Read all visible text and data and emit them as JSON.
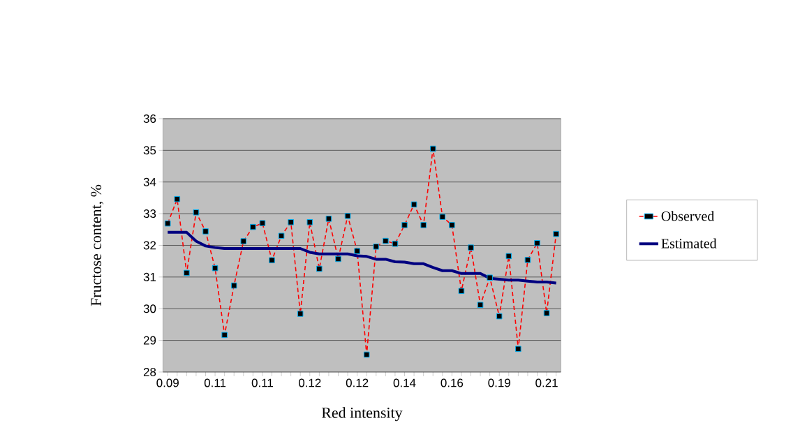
{
  "chart_data": {
    "type": "line",
    "xlabel": "Red intensity",
    "ylabel": "Fructose content, %",
    "categories": [
      "0.09",
      null,
      null,
      null,
      null,
      "0.11",
      null,
      null,
      null,
      null,
      "0.11",
      null,
      null,
      null,
      null,
      "0.12",
      null,
      null,
      null,
      null,
      "0.12",
      null,
      null,
      null,
      null,
      "0.14",
      null,
      null,
      null,
      null,
      "0.16",
      null,
      null,
      null,
      null,
      "0.19",
      null,
      null,
      null,
      null,
      "0.21",
      null
    ],
    "series": [
      {
        "name": "Observed",
        "color": "#ff0000",
        "marker": "square",
        "line_style": "dashed",
        "values": [
          32.69,
          33.46,
          31.13,
          33.04,
          32.44,
          31.28,
          29.17,
          30.73,
          32.13,
          32.58,
          32.7,
          31.53,
          32.3,
          32.73,
          29.84,
          32.73,
          31.26,
          32.84,
          31.57,
          32.93,
          31.82,
          28.55,
          31.96,
          32.14,
          32.05,
          32.64,
          33.29,
          32.64,
          35.05,
          32.9,
          32.64,
          30.56,
          31.93,
          30.12,
          30.98,
          29.76,
          31.66,
          28.73,
          31.54,
          32.07,
          29.86,
          32.36
        ]
      },
      {
        "name": "Estimated",
        "color": "#000080",
        "marker": "none",
        "line_style": "solid",
        "values": [
          32.41,
          32.41,
          32.41,
          32.13,
          31.98,
          31.93,
          31.9,
          31.9,
          31.9,
          31.9,
          31.9,
          31.9,
          31.9,
          31.9,
          31.9,
          31.78,
          31.73,
          31.73,
          31.73,
          31.73,
          31.67,
          31.65,
          31.56,
          31.56,
          31.48,
          31.47,
          31.42,
          31.42,
          31.3,
          31.2,
          31.2,
          31.11,
          31.11,
          31.11,
          30.96,
          30.93,
          30.9,
          30.9,
          30.87,
          30.84,
          30.84,
          30.81
        ]
      }
    ],
    "ylim": [
      28,
      36
    ],
    "yticks": [
      28,
      29,
      30,
      31,
      32,
      33,
      34,
      35,
      36
    ],
    "grid": "y",
    "legend": "right"
  }
}
